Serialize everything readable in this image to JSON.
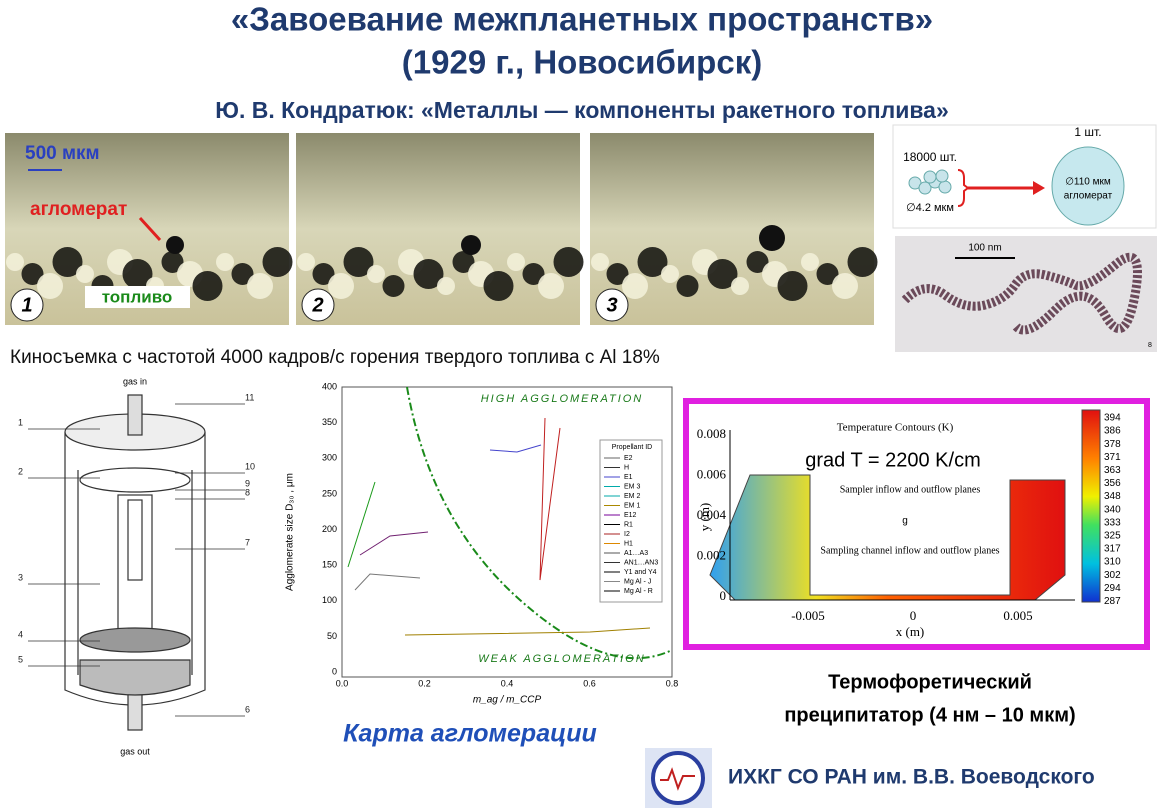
{
  "title": [
    "«Завоевание межпланетных пространств»",
    "(1929 г., Новосибирск)"
  ],
  "subtitle": "Ю. В. Кондратюк: «Металлы — компоненты ракетного топлива»",
  "photos": {
    "scale": "500 мкм",
    "agglomerate": "агломерат",
    "fuel": "топливо",
    "frames": [
      "1",
      "2",
      "3"
    ]
  },
  "schematic": {
    "count_many": "18000 шт.",
    "size_small": "∅4.2 мкм",
    "count_one": "1 шт.",
    "size_big": "∅110  мкм",
    "big_label": "агломерат",
    "tem_scale": "100 nm",
    "page_num": "8"
  },
  "caption": "Киносъемка с частотой 4000 кадров/с  горения твердого топлива с  Al 18%",
  "reactor": {
    "top": "gas in",
    "bottom": "gas out",
    "labels": [
      "1",
      "2",
      "3",
      "4",
      "5",
      "6",
      "7",
      "8",
      "9",
      "10",
      "11"
    ]
  },
  "agglomeration_map": {
    "y_label": "Agglomerate size D₃₀ , μm",
    "x_label": "m_ag / m_CCP",
    "yticks": [
      "0",
      "50",
      "100",
      "150",
      "200",
      "250",
      "300",
      "350",
      "400"
    ],
    "xticks": [
      "0.0",
      "0.2",
      "0.4",
      "0.6",
      "0.8"
    ],
    "high": "HIGH AGGLOMERATION",
    "weak": "WEAK AGGLOMERATION",
    "legend_title": "Propellant ID",
    "legend": [
      "E2",
      "H",
      "E1",
      "EM 3",
      "EM 2",
      "EM 1",
      "E12",
      "R1",
      "I2",
      "H1",
      "A1…A3",
      "AN1…AN3",
      "Y1 and Y4",
      "Mg Al - J",
      "Mg Al - R"
    ],
    "caption": "Карта агломерации"
  },
  "contour": {
    "title": "Temperature Contours (K)",
    "grad": "grad T = 2200 K/cm",
    "note_top": "Sampler inflow and outflow planes",
    "note_bottom": "Sampling channel inflow and outflow planes",
    "g": "g",
    "yticks": [
      "0.008",
      "0.006",
      "0.004",
      "0.002",
      "0"
    ],
    "xticks": [
      "-0.005",
      "0",
      "0.005"
    ],
    "x_label": "x (m)",
    "y_label": "y (m)",
    "colorbar": [
      "394",
      "386",
      "378",
      "371",
      "363",
      "356",
      "348",
      "340",
      "333",
      "325",
      "317",
      "310",
      "302",
      "294",
      "287"
    ]
  },
  "precipitator": [
    "Термофоретический",
    "преципитатор (4 нм – 10 мкм)"
  ],
  "institute": "ИХКГ СО РАН им. В.В. Воеводского"
}
